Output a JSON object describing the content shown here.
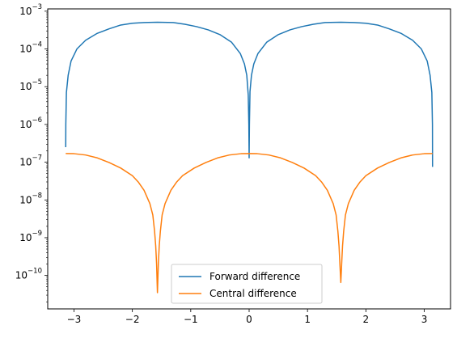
{
  "chart_data": {
    "type": "line",
    "title": "",
    "xlabel": "",
    "ylabel": "",
    "yscale": "log",
    "xlim": [
      -3.45,
      3.45
    ],
    "ylim": [
      1.3e-11,
      0.00115
    ],
    "grid": false,
    "legend_position": "lower-center",
    "x_ticks": [
      {
        "value": -3,
        "label": "−3"
      },
      {
        "value": -2,
        "label": "−2"
      },
      {
        "value": -1,
        "label": "−1"
      },
      {
        "value": 0,
        "label": "0"
      },
      {
        "value": 1,
        "label": "1"
      },
      {
        "value": 2,
        "label": "2"
      },
      {
        "value": 3,
        "label": "3"
      }
    ],
    "y_ticks": [
      {
        "value": 1e-10,
        "base": "10",
        "exp": "−10"
      },
      {
        "value": 1e-09,
        "base": "10",
        "exp": "−9"
      },
      {
        "value": 1e-08,
        "base": "10",
        "exp": "−8"
      },
      {
        "value": 1e-07,
        "base": "10",
        "exp": "−7"
      },
      {
        "value": 1e-06,
        "base": "10",
        "exp": "−6"
      },
      {
        "value": 1e-05,
        "base": "10",
        "exp": "−5"
      },
      {
        "value": 0.0001,
        "base": "10",
        "exp": "−4"
      },
      {
        "value": 0.001,
        "base": "10",
        "exp": "−3"
      }
    ],
    "series": [
      {
        "name": "Forward difference",
        "color": "#1f77b4",
        "points": [
          [
            -3.1416,
            2.5e-07
          ],
          [
            -3.14,
            1e-06
          ],
          [
            -3.13,
            7e-06
          ],
          [
            -3.1,
            2e-05
          ],
          [
            -3.05,
            4.8e-05
          ],
          [
            -2.95,
            0.0001
          ],
          [
            -2.8,
            0.00017
          ],
          [
            -2.6,
            0.00026
          ],
          [
            -2.4,
            0.00034
          ],
          [
            -2.2,
            0.00043
          ],
          [
            -2.0,
            0.00048
          ],
          [
            -1.8,
            0.0005
          ],
          [
            -1.5708,
            0.00051
          ],
          [
            -1.3,
            0.0005
          ],
          [
            -1.1,
            0.00045
          ],
          [
            -0.9,
            0.00039
          ],
          [
            -0.7,
            0.00032
          ],
          [
            -0.5,
            0.00024
          ],
          [
            -0.3,
            0.00015
          ],
          [
            -0.15,
            7.5e-05
          ],
          [
            -0.08,
            4e-05
          ],
          [
            -0.04,
            2e-05
          ],
          [
            -0.015,
            6e-06
          ],
          [
            -0.005,
            1e-06
          ],
          [
            0.0,
            1.3e-07
          ],
          [
            0.005,
            1e-06
          ],
          [
            0.015,
            7.5e-06
          ],
          [
            0.04,
            2e-05
          ],
          [
            0.08,
            4e-05
          ],
          [
            0.15,
            7.5e-05
          ],
          [
            0.3,
            0.00015
          ],
          [
            0.5,
            0.00024
          ],
          [
            0.7,
            0.00032
          ],
          [
            0.9,
            0.00039
          ],
          [
            1.1,
            0.00045
          ],
          [
            1.3,
            0.0005
          ],
          [
            1.5708,
            0.00051
          ],
          [
            1.8,
            0.0005
          ],
          [
            2.0,
            0.00048
          ],
          [
            2.2,
            0.00043
          ],
          [
            2.4,
            0.00034
          ],
          [
            2.6,
            0.00026
          ],
          [
            2.8,
            0.00017
          ],
          [
            2.95,
            0.0001
          ],
          [
            3.05,
            4.8e-05
          ],
          [
            3.1,
            2e-05
          ],
          [
            3.13,
            7e-06
          ],
          [
            3.14,
            1e-06
          ],
          [
            3.1416,
            7.5e-08
          ]
        ]
      },
      {
        "name": "Central difference",
        "color": "#ff7f0e",
        "points": [
          [
            -3.1416,
            1.7e-07
          ],
          [
            -3.0,
            1.68e-07
          ],
          [
            -2.8,
            1.55e-07
          ],
          [
            -2.6,
            1.3e-07
          ],
          [
            -2.4,
            9.8e-08
          ],
          [
            -2.2,
            7e-08
          ],
          [
            -2.0,
            4.4e-08
          ],
          [
            -1.9,
            3e-08
          ],
          [
            -1.8,
            1.8e-08
          ],
          [
            -1.7,
            8e-09
          ],
          [
            -1.65,
            4e-09
          ],
          [
            -1.62,
            1.5e-09
          ],
          [
            -1.6,
            6e-10
          ],
          [
            -1.585,
            2e-10
          ],
          [
            -1.5708,
            3.5e-11
          ],
          [
            -1.555,
            2e-10
          ],
          [
            -1.54,
            6e-10
          ],
          [
            -1.52,
            1.5e-09
          ],
          [
            -1.49,
            4e-09
          ],
          [
            -1.44,
            8e-09
          ],
          [
            -1.34,
            1.8e-08
          ],
          [
            -1.24,
            3e-08
          ],
          [
            -1.14,
            4.4e-08
          ],
          [
            -0.94,
            7e-08
          ],
          [
            -0.74,
            9.8e-08
          ],
          [
            -0.54,
            1.3e-07
          ],
          [
            -0.34,
            1.55e-07
          ],
          [
            -0.14,
            1.68e-07
          ],
          [
            0.0,
            1.7e-07
          ],
          [
            0.14,
            1.68e-07
          ],
          [
            0.34,
            1.55e-07
          ],
          [
            0.54,
            1.3e-07
          ],
          [
            0.74,
            9.8e-08
          ],
          [
            0.94,
            7e-08
          ],
          [
            1.14,
            4.4e-08
          ],
          [
            1.24,
            3e-08
          ],
          [
            1.34,
            1.8e-08
          ],
          [
            1.44,
            8e-09
          ],
          [
            1.49,
            4e-09
          ],
          [
            1.52,
            1.5e-09
          ],
          [
            1.54,
            6e-10
          ],
          [
            1.555,
            2e-10
          ],
          [
            1.5708,
            6.5e-11
          ],
          [
            1.585,
            2e-10
          ],
          [
            1.6,
            6e-10
          ],
          [
            1.62,
            1.5e-09
          ],
          [
            1.65,
            4e-09
          ],
          [
            1.7,
            8e-09
          ],
          [
            1.8,
            1.8e-08
          ],
          [
            1.9,
            3e-08
          ],
          [
            2.0,
            4.4e-08
          ],
          [
            2.2,
            7e-08
          ],
          [
            2.4,
            9.8e-08
          ],
          [
            2.6,
            1.3e-07
          ],
          [
            2.8,
            1.55e-07
          ],
          [
            3.0,
            1.68e-07
          ],
          [
            3.1416,
            1.7e-07
          ]
        ]
      }
    ]
  }
}
